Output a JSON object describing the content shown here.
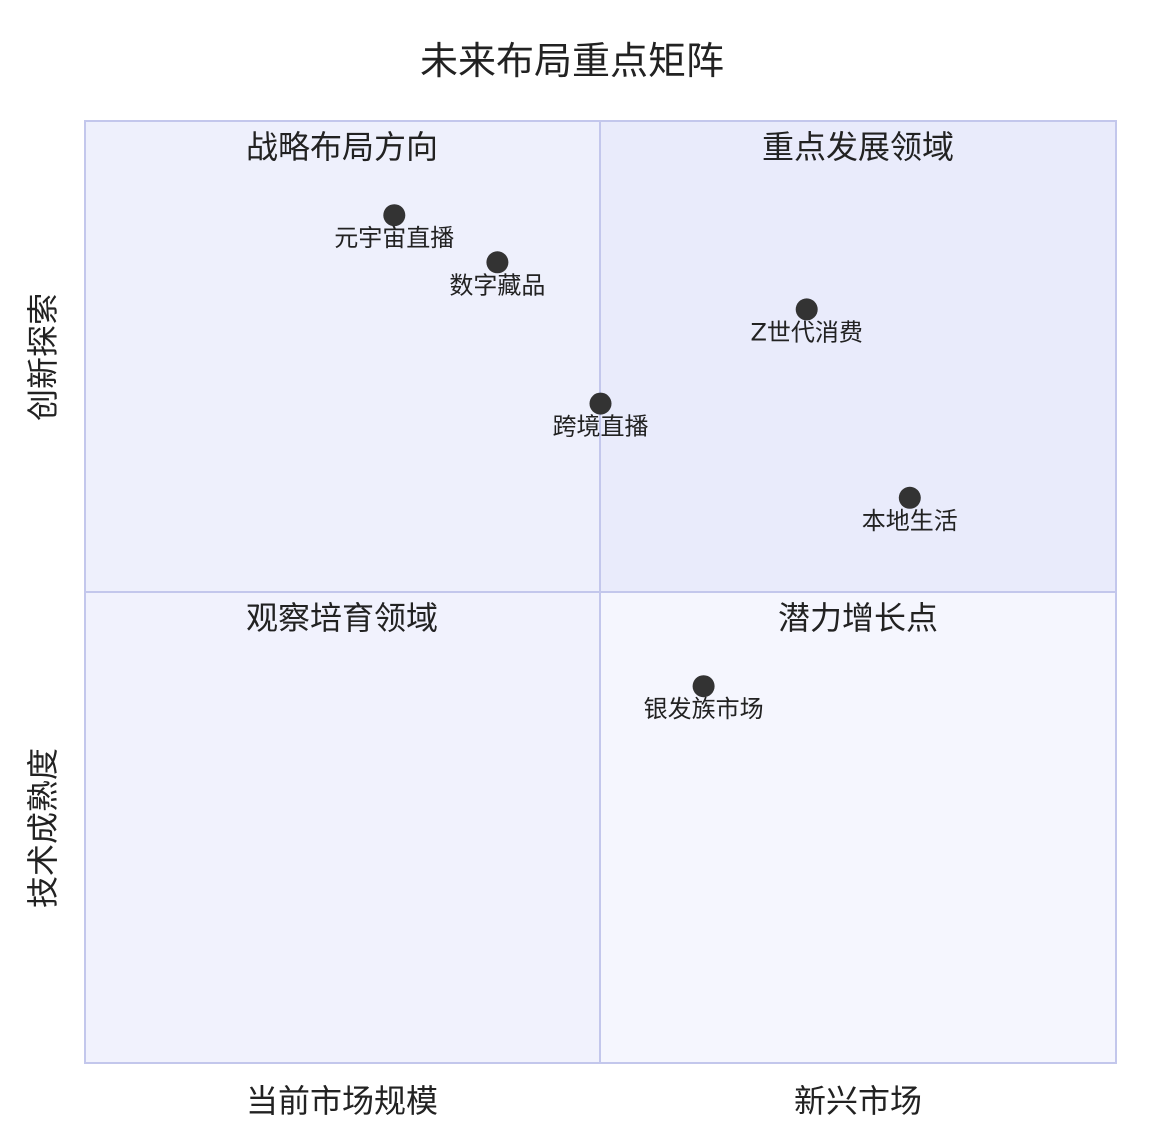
{
  "chart_data": {
    "type": "scatter",
    "subtype": "quadrant",
    "title": "未来布局重点矩阵",
    "x_axis": {
      "left_label": "当前市场规模",
      "right_label": "新兴市场",
      "range": [
        0,
        1
      ]
    },
    "y_axis": {
      "bottom_label": "技术成熟度",
      "top_label": "创新探索",
      "range": [
        0,
        1
      ]
    },
    "quadrants": {
      "q1": {
        "label": "重点发展领域",
        "color": "#e9ebfb"
      },
      "q2": {
        "label": "战略布局方向",
        "color": "#eef0fc"
      },
      "q3": {
        "label": "观察培育领域",
        "color": "#f1f2fd"
      },
      "q4": {
        "label": "潜力增长点",
        "color": "#f5f6fe"
      }
    },
    "points": [
      {
        "label": "元宇宙直播",
        "x": 0.3,
        "y": 0.9
      },
      {
        "label": "数字藏品",
        "x": 0.4,
        "y": 0.85
      },
      {
        "label": "Z世代消费",
        "x": 0.7,
        "y": 0.8
      },
      {
        "label": "跨境直播",
        "x": 0.5,
        "y": 0.7
      },
      {
        "label": "本地生活",
        "x": 0.8,
        "y": 0.6
      },
      {
        "label": "银发族市场",
        "x": 0.6,
        "y": 0.4
      }
    ],
    "point_color": "#333333",
    "border_color": "#c3c7ec"
  }
}
